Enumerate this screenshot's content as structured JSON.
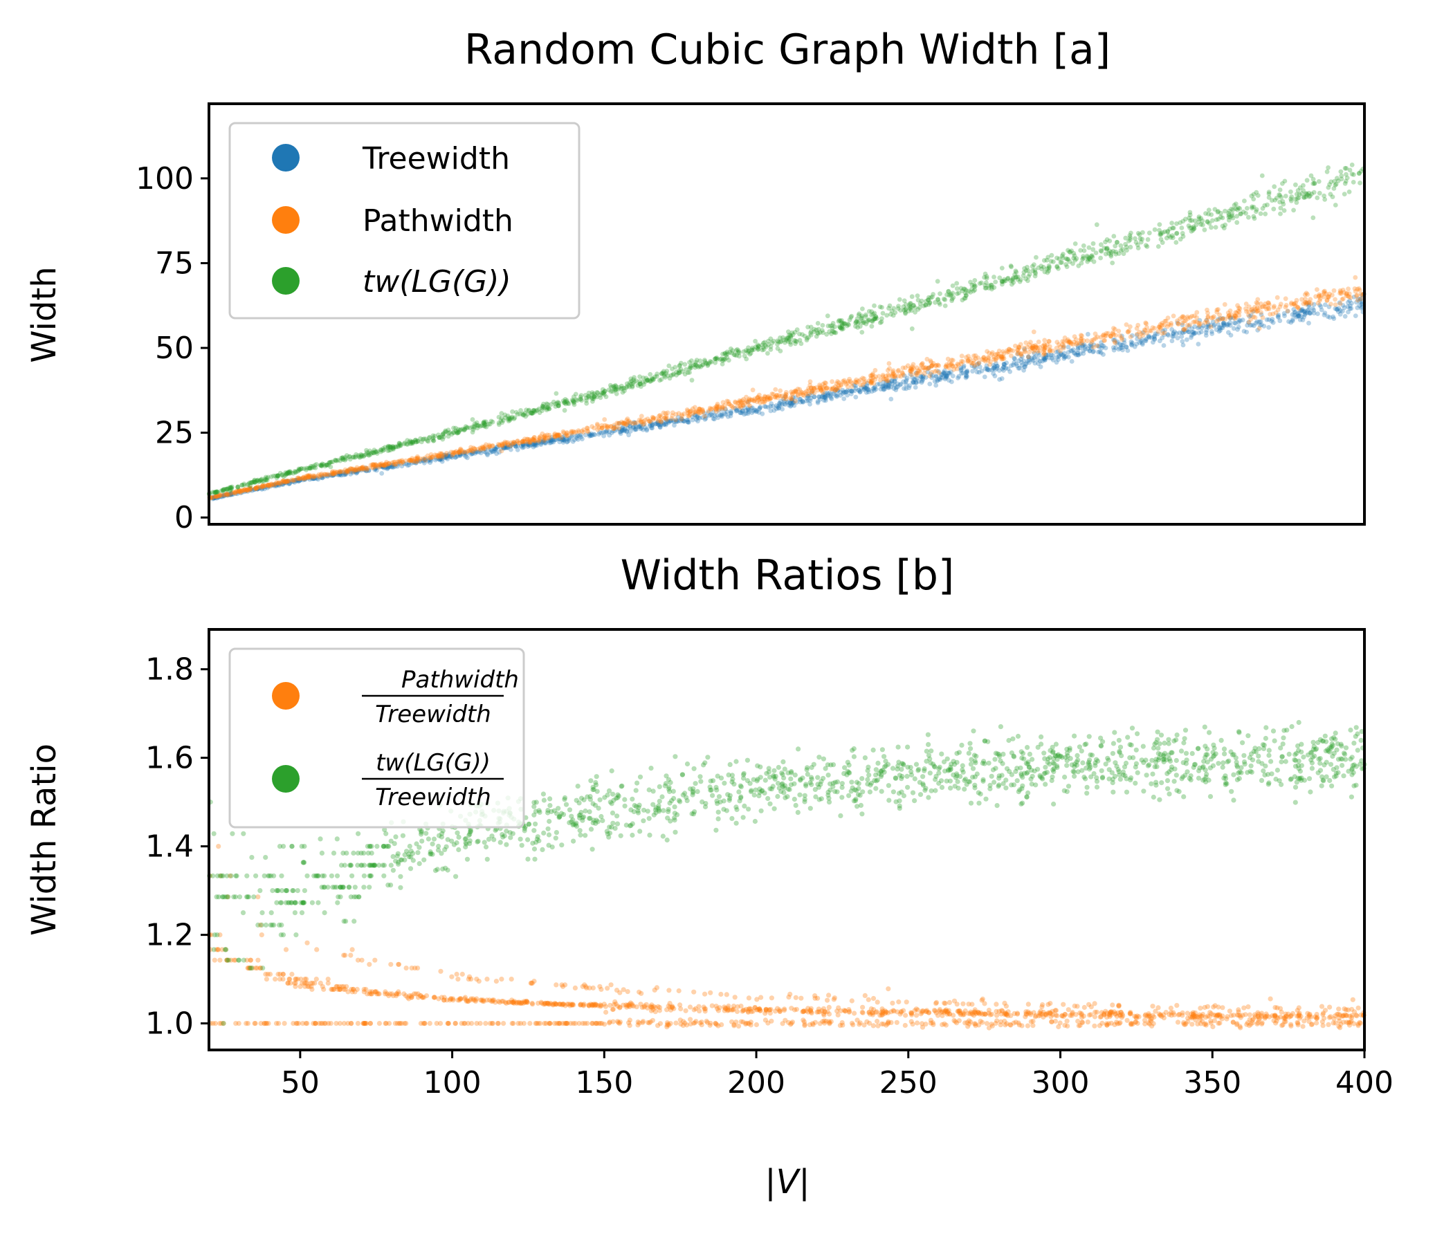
{
  "chart_data": [
    {
      "type": "scatter",
      "title": "Random Cubic Graph Width [a]",
      "xlabel": "",
      "ylabel": "Width",
      "xlim": [
        20,
        400
      ],
      "ylim": [
        -2,
        122
      ],
      "x_ticks_visible": false,
      "y_ticks": [
        0,
        25,
        50,
        75,
        100
      ],
      "legend_position": "top-left",
      "series": [
        {
          "name": "Treewidth",
          "color": "#1f77b4",
          "x": [
            20,
            50,
            100,
            150,
            200,
            250,
            300,
            350,
            400
          ],
          "y": [
            5.5,
            11,
            18,
            25,
            32,
            40,
            48,
            56,
            63
          ]
        },
        {
          "name": "Pathwidth",
          "color": "#ff7f0e",
          "x": [
            20,
            50,
            100,
            150,
            200,
            250,
            300,
            350,
            400
          ],
          "y": [
            5.8,
            11.5,
            19,
            26.5,
            34.5,
            43,
            51,
            59,
            67
          ]
        },
        {
          "name": "tw(LG(G))",
          "color": "#2ca02c",
          "x": [
            20,
            50,
            100,
            150,
            200,
            250,
            300,
            350,
            400
          ],
          "y": [
            7,
            14,
            25,
            37,
            50,
            62,
            75,
            88,
            101
          ]
        }
      ]
    },
    {
      "type": "scatter",
      "title": "Width Ratios [b]",
      "xlabel": "|V|",
      "ylabel": "Width Ratio",
      "xlim": [
        20,
        400
      ],
      "ylim": [
        0.94,
        1.89
      ],
      "x_ticks": [
        50,
        100,
        150,
        200,
        250,
        300,
        350,
        400
      ],
      "y_ticks": [
        1.0,
        1.2,
        1.4,
        1.6,
        1.8
      ],
      "legend_position": "top-left",
      "series": [
        {
          "name": "Pathwidth / Treewidth",
          "numerator": "Pathwidth",
          "denominator": "Treewidth",
          "color": "#ff7f0e",
          "x": [
            20,
            50,
            100,
            150,
            200,
            250,
            300,
            350,
            400
          ],
          "y": [
            1.14,
            1.1,
            1.08,
            1.07,
            1.065,
            1.06,
            1.055,
            1.055,
            1.05
          ]
        },
        {
          "name": "tw(LG(G)) / Treewidth",
          "numerator": "tw(LG(G))",
          "denominator": "Treewidth",
          "color": "#2ca02c",
          "x": [
            20,
            50,
            100,
            150,
            200,
            250,
            300,
            350,
            400
          ],
          "y": [
            1.25,
            1.3,
            1.42,
            1.48,
            1.53,
            1.56,
            1.58,
            1.59,
            1.6
          ]
        }
      ]
    }
  ]
}
